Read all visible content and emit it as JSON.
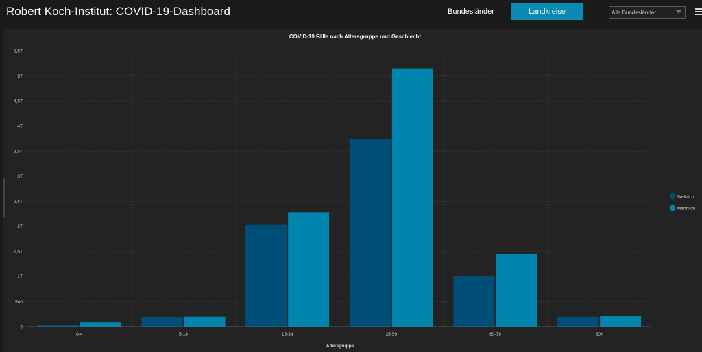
{
  "header": {
    "title": "Robert Koch-Institut: COVID-19-Dashboard",
    "nav": {
      "bundeslaender_label": "Bundesländer",
      "landkreise_label": "Landkreise"
    },
    "region_select": {
      "value": "Alle Bundesländer"
    },
    "menu_icon": "hamburger-menu-icon"
  },
  "colors": {
    "accent": "#0a8bb5",
    "weiblich": "#004f78",
    "maennlich": "#0085ae"
  },
  "chart_data": {
    "type": "bar",
    "title": "COVID-19 Fälle nach Altersgruppe und Geschlecht",
    "xlabel": "Altersgruppe",
    "ylabel": "",
    "categories": [
      "0-4",
      "5-14",
      "15-34",
      "35-59",
      "60-79",
      "80+"
    ],
    "series": [
      {
        "name": "Weiblich",
        "values": [
          40,
          190,
          2030,
          3750,
          1010,
          195
        ]
      },
      {
        "name": "Männlich",
        "values": [
          80,
          195,
          2280,
          5150,
          1450,
          220
        ]
      }
    ],
    "ylim": [
      0,
      5500
    ],
    "y_ticks": [
      {
        "value": 0,
        "label": "0"
      },
      {
        "value": 500,
        "label": "500"
      },
      {
        "value": 1000,
        "label": "1T"
      },
      {
        "value": 1500,
        "label": "1,5T"
      },
      {
        "value": 2000,
        "label": "2T"
      },
      {
        "value": 2500,
        "label": "2,5T"
      },
      {
        "value": 3000,
        "label": "3T"
      },
      {
        "value": 3500,
        "label": "3,5T"
      },
      {
        "value": 4000,
        "label": "4T"
      },
      {
        "value": 4500,
        "label": "4,5T"
      },
      {
        "value": 5000,
        "label": "5T"
      },
      {
        "value": 5500,
        "label": "5,5T"
      }
    ],
    "grid": true,
    "legend": "right"
  }
}
